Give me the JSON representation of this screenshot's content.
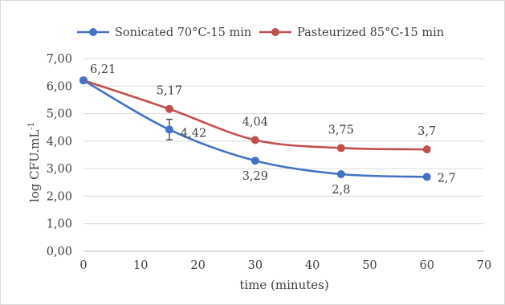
{
  "chart_data": {
    "type": "line",
    "title": "",
    "xlabel": "time (minutes)",
    "ylabel_main": "log CFU.mL",
    "ylabel_sup": "-1",
    "xlim": [
      0,
      70
    ],
    "ylim": [
      0,
      7
    ],
    "x_ticks": [
      0,
      10,
      20,
      30,
      40,
      50,
      60,
      70
    ],
    "y_ticks": [
      "0,00",
      "1,00",
      "2,00",
      "3,00",
      "4,00",
      "5,00",
      "6,00",
      "7,00"
    ],
    "grid": true,
    "legend_position": "top",
    "series": [
      {
        "name": "Sonicated 70°C-15 min",
        "color": "#4472C4",
        "x": [
          0,
          15,
          30,
          45,
          60
        ],
        "values": [
          6.21,
          4.42,
          3.29,
          2.8,
          2.7
        ],
        "labels": [
          "6,21",
          "4,42",
          "3,29",
          "2,8",
          "2,7"
        ],
        "error": [
          0,
          0.37,
          0,
          0,
          0
        ]
      },
      {
        "name": "Pasteurized 85°C-15 min",
        "color": "#C0504D",
        "x": [
          0,
          15,
          30,
          45,
          60
        ],
        "values": [
          6.21,
          5.17,
          4.04,
          3.75,
          3.7
        ],
        "labels": [
          "",
          "5,17",
          "4,04",
          "3,75",
          "3,7"
        ],
        "error": [
          0,
          0,
          0,
          0,
          0
        ]
      }
    ]
  }
}
